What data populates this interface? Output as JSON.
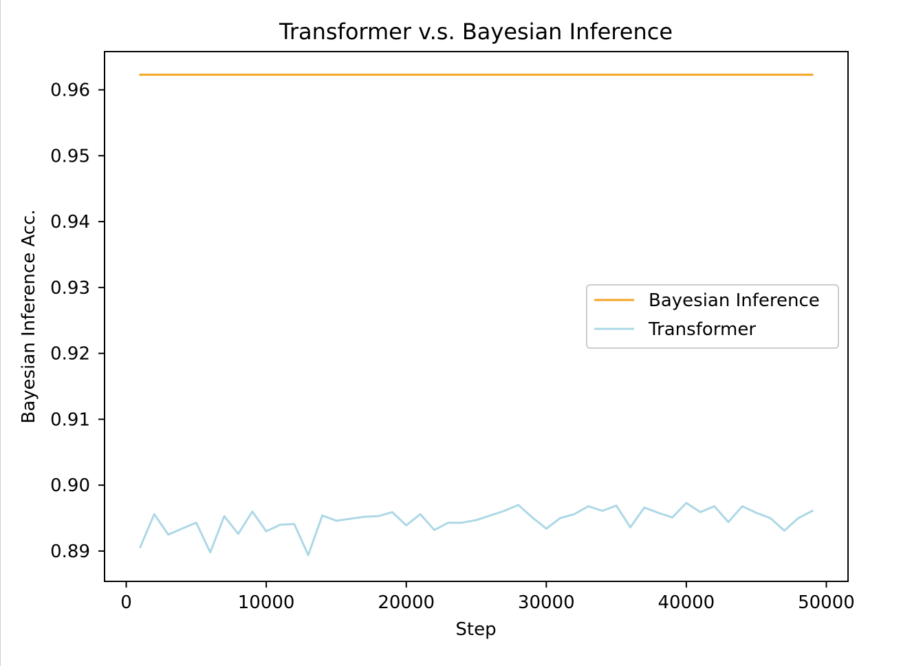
{
  "chart_data": {
    "type": "line",
    "title": "Transformer v.s. Bayesian Inference",
    "xlabel": "Step",
    "ylabel": "Bayesian Inference Acc.",
    "xlim": [
      -1500,
      51500
    ],
    "ylim": [
      0.8855,
      0.9657
    ],
    "xticks": [
      0,
      10000,
      20000,
      30000,
      40000,
      50000
    ],
    "xtick_labels": [
      "0",
      "10000",
      "20000",
      "30000",
      "40000",
      "50000"
    ],
    "yticks": [
      0.89,
      0.9,
      0.91,
      0.92,
      0.93,
      0.94,
      0.95,
      0.96
    ],
    "ytick_labels": [
      "0.89",
      "0.90",
      "0.91",
      "0.92",
      "0.93",
      "0.94",
      "0.95",
      "0.96"
    ],
    "grid": false,
    "legend_position": "center-right",
    "series": [
      {
        "name": "Bayesian Inference",
        "color": "#f5a623",
        "x": [
          1000,
          49000
        ],
        "y": [
          0.9623,
          0.9623
        ]
      },
      {
        "name": "Transformer",
        "color": "#add8e6",
        "x": [
          1000,
          2000,
          3000,
          4000,
          5000,
          6000,
          7000,
          8000,
          9000,
          10000,
          11000,
          12000,
          13000,
          14000,
          15000,
          16000,
          17000,
          18000,
          19000,
          20000,
          21000,
          22000,
          23000,
          24000,
          25000,
          26000,
          27000,
          28000,
          29000,
          30000,
          31000,
          32000,
          33000,
          34000,
          35000,
          36000,
          37000,
          38000,
          39000,
          40000,
          41000,
          42000,
          43000,
          44000,
          45000,
          46000,
          47000,
          48000,
          49000
        ],
        "y": [
          0.8906,
          0.8956,
          0.8925,
          0.8934,
          0.8943,
          0.8898,
          0.8953,
          0.8926,
          0.896,
          0.893,
          0.894,
          0.8941,
          0.8894,
          0.8954,
          0.8946,
          0.8949,
          0.8952,
          0.8953,
          0.8959,
          0.8939,
          0.8956,
          0.8932,
          0.8943,
          0.8943,
          0.8947,
          0.8954,
          0.8961,
          0.897,
          0.8951,
          0.8934,
          0.895,
          0.8956,
          0.8968,
          0.8961,
          0.8969,
          0.8936,
          0.8966,
          0.8958,
          0.8951,
          0.8973,
          0.8959,
          0.8968,
          0.8944,
          0.8968,
          0.8958,
          0.895,
          0.8931,
          0.895,
          0.8961
        ]
      }
    ]
  }
}
